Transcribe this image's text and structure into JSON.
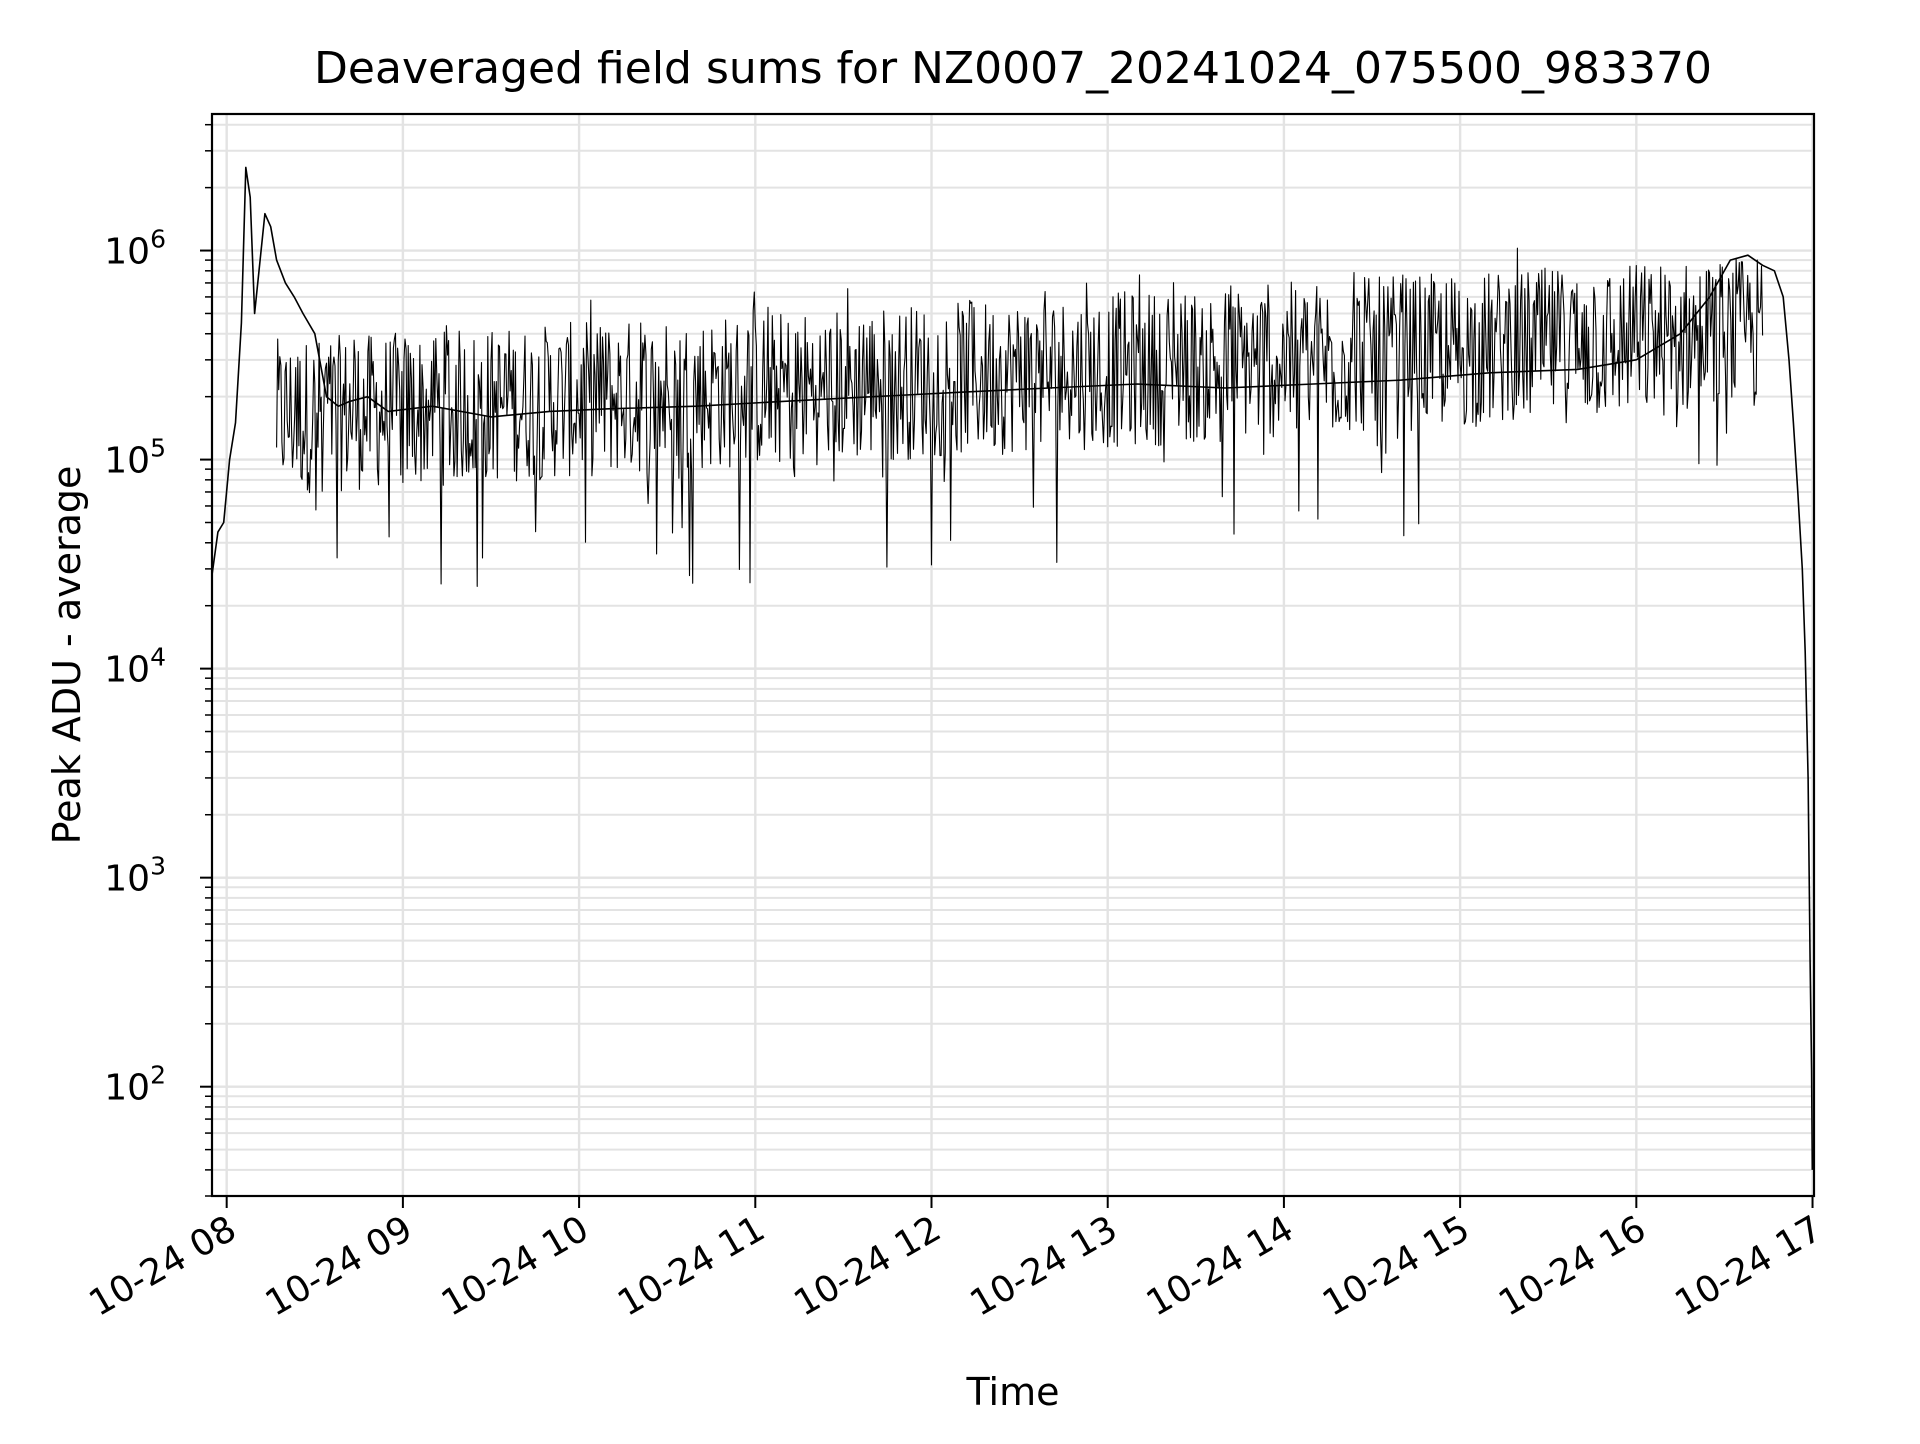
{
  "chart_data": {
    "type": "line",
    "title": "Deaveraged field sums for NZ0007_20241024_075500_983370",
    "xlabel": "Time",
    "ylabel": "Peak ADU - average",
    "yscale": "log",
    "xlim": [
      "2024-10-24T07:55:00",
      "2024-10-24T17:00:30"
    ],
    "ylim": [
      30,
      4500000
    ],
    "grid": true,
    "x_ticks": [
      {
        "t": "2024-10-24T08:00:00",
        "label": "10-24 08"
      },
      {
        "t": "2024-10-24T09:00:00",
        "label": "10-24 09"
      },
      {
        "t": "2024-10-24T10:00:00",
        "label": "10-24 10"
      },
      {
        "t": "2024-10-24T11:00:00",
        "label": "10-24 11"
      },
      {
        "t": "2024-10-24T12:00:00",
        "label": "10-24 12"
      },
      {
        "t": "2024-10-24T13:00:00",
        "label": "10-24 13"
      },
      {
        "t": "2024-10-24T14:00:00",
        "label": "10-24 14"
      },
      {
        "t": "2024-10-24T15:00:00",
        "label": "10-24 15"
      },
      {
        "t": "2024-10-24T16:00:00",
        "label": "10-24 16"
      },
      {
        "t": "2024-10-24T17:00:00",
        "label": "10-24 17"
      }
    ],
    "y_ticks": [
      {
        "value": 100,
        "base": "10",
        "exp": "2"
      },
      {
        "value": 1000,
        "base": "10",
        "exp": "3"
      },
      {
        "value": 10000,
        "base": "10",
        "exp": "4"
      },
      {
        "value": 100000,
        "base": "10",
        "exp": "5"
      },
      {
        "value": 1000000,
        "base": "10",
        "exp": "6"
      }
    ],
    "series": [
      {
        "color": "#000000",
        "x": [
          "2024-10-24T07:55:00",
          "2024-10-24T07:57:00",
          "2024-10-24T07:59:00",
          "2024-10-24T08:01:00",
          "2024-10-24T08:03:00",
          "2024-10-24T08:05:00",
          "2024-10-24T08:06:30",
          "2024-10-24T08:08:00",
          "2024-10-24T08:09:30",
          "2024-10-24T08:11:00",
          "2024-10-24T08:13:00",
          "2024-10-24T08:15:00",
          "2024-10-24T08:17:00",
          "2024-10-24T08:20:00",
          "2024-10-24T08:23:00",
          "2024-10-24T08:26:00",
          "2024-10-24T08:30:00",
          "2024-10-24T08:34:00",
          "2024-10-24T08:38:00",
          "2024-10-24T08:42:00",
          "2024-10-24T08:48:00",
          "2024-10-24T08:55:00",
          "2024-10-24T09:10:00",
          "2024-10-24T09:30:00",
          "2024-10-24T09:50:00",
          "2024-10-24T10:10:00",
          "2024-10-24T10:40:00",
          "2024-10-24T11:10:00",
          "2024-10-24T11:40:00",
          "2024-10-24T12:10:00",
          "2024-10-24T12:40:00",
          "2024-10-24T13:10:00",
          "2024-10-24T13:40:00",
          "2024-10-24T14:10:00",
          "2024-10-24T14:40:00",
          "2024-10-24T15:10:00",
          "2024-10-24T15:40:00",
          "2024-10-24T16:00:00",
          "2024-10-24T16:15:00",
          "2024-10-24T16:25:00",
          "2024-10-24T16:32:00",
          "2024-10-24T16:38:00",
          "2024-10-24T16:43:00",
          "2024-10-24T16:47:00",
          "2024-10-24T16:50:00",
          "2024-10-24T16:52:00",
          "2024-10-24T16:53:30",
          "2024-10-24T16:55:00",
          "2024-10-24T16:56:30",
          "2024-10-24T16:57:30",
          "2024-10-24T16:58:30",
          "2024-10-24T16:59:10",
          "2024-10-24T16:59:40",
          "2024-10-24T16:59:55"
        ],
        "y": [
          28000,
          45000,
          50000,
          100000,
          150000,
          450000,
          2500000,
          1800000,
          500000,
          800000,
          1500000,
          1300000,
          900000,
          700000,
          600000,
          500000,
          400000,
          200000,
          180000,
          190000,
          200000,
          170000,
          180000,
          160000,
          170000,
          175000,
          180000,
          190000,
          200000,
          210000,
          220000,
          230000,
          220000,
          230000,
          240000,
          260000,
          270000,
          300000,
          400000,
          600000,
          900000,
          950000,
          850000,
          800000,
          600000,
          300000,
          150000,
          70000,
          30000,
          12000,
          3000,
          400,
          120,
          40
        ]
      }
    ],
    "noise_spikes": {
      "x_range": [
        "2024-10-24T08:17:00",
        "2024-10-24T16:43:00"
      ],
      "min_values": [
        15000,
        60000
      ],
      "max_values": [
        500000,
        1200000
      ]
    }
  }
}
